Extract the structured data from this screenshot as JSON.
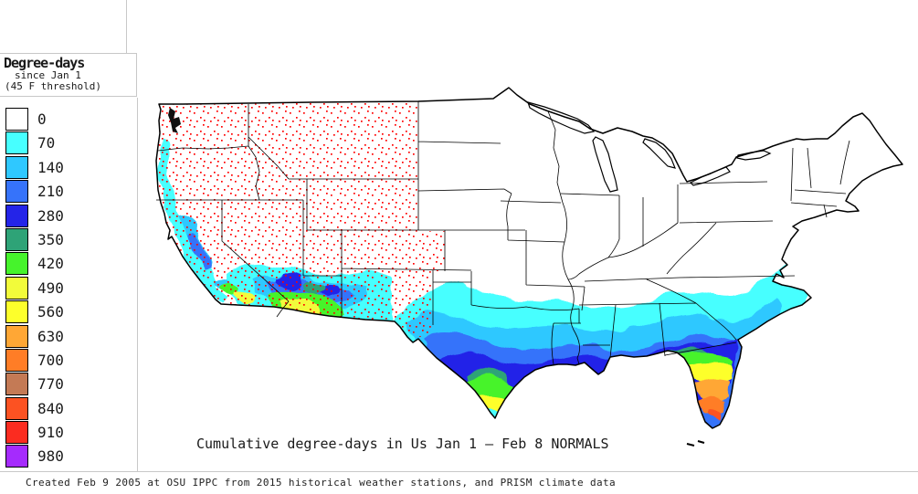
{
  "legend": {
    "title": "Degree-days",
    "subtitle1": "since Jan 1",
    "subtitle2": "(45 F threshold)",
    "entries": [
      {
        "value": "0",
        "color": "c0"
      },
      {
        "value": "70",
        "color": "c70"
      },
      {
        "value": "140",
        "color": "c140"
      },
      {
        "value": "210",
        "color": "c210"
      },
      {
        "value": "280",
        "color": "c280"
      },
      {
        "value": "350",
        "color": "c350"
      },
      {
        "value": "420",
        "color": "c420"
      },
      {
        "value": "490",
        "color": "c490"
      },
      {
        "value": "560",
        "color": "c560"
      },
      {
        "value": "630",
        "color": "c630"
      },
      {
        "value": "700",
        "color": "c700"
      },
      {
        "value": "770",
        "color": "c770"
      },
      {
        "value": "840",
        "color": "c840"
      },
      {
        "value": "910",
        "color": "c910"
      },
      {
        "value": "980",
        "color": "c980"
      }
    ]
  },
  "colors": {
    "c0": "#ffffff",
    "c70": "#47ffff",
    "c140": "#2fc8ff",
    "c210": "#3673fa",
    "c280": "#2424e8",
    "c350": "#2ea377",
    "c420": "#46f32c",
    "c490": "#f2fb3a",
    "c560": "#fdff2b",
    "c630": "#ffa735",
    "c700": "#ff7d26",
    "c770": "#c47a55",
    "c840": "#fc5222",
    "c910": "#fb2c20",
    "c980": "#a52bfd"
  },
  "map": {
    "title": "Cumulative degree-days in Us Jan 1 — Feb 8 NORMALS",
    "station_dot_color": "#ff0000",
    "boundary_color": "#000000",
    "frame_color": "#c8c8c8"
  },
  "footer": {
    "text": "Created Feb 9 2005 at OSU IPPC from 2015 historical weather stations, and PRISM climate data"
  }
}
